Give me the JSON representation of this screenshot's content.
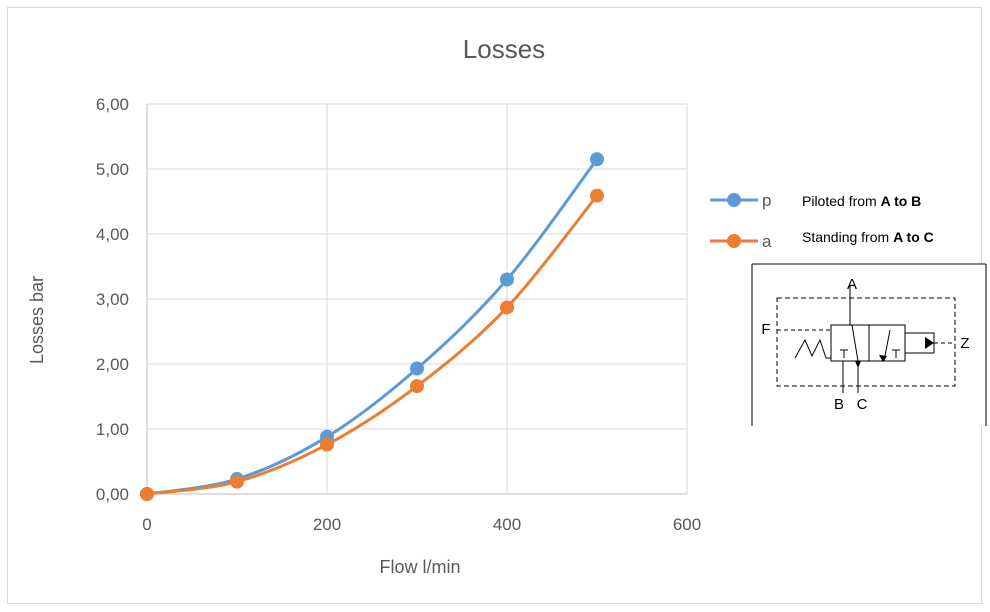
{
  "chart_data": {
    "type": "line",
    "title": "Losses",
    "xlabel": "Flow l/min",
    "ylabel": "Losses bar",
    "xlim": [
      0,
      600
    ],
    "ylim": [
      0,
      6
    ],
    "x_ticks": [
      "0",
      "200",
      "400",
      "600"
    ],
    "y_ticks": [
      "0,00",
      "1,00",
      "2,00",
      "3,00",
      "4,00",
      "5,00",
      "6,00"
    ],
    "grid": true,
    "smooth": true,
    "legend_position": "right",
    "x": [
      0,
      100,
      200,
      300,
      400,
      500
    ],
    "series": [
      {
        "name": "p",
        "color": "#5b9bd5",
        "values": [
          0.0,
          0.23,
          0.88,
          1.93,
          3.3,
          5.15
        ]
      },
      {
        "name": "a",
        "color": "#ed7d31",
        "values": [
          0.0,
          0.19,
          0.76,
          1.66,
          2.87,
          4.59
        ]
      }
    ]
  },
  "notes": {
    "piloted": {
      "prefix": "Piloted from ",
      "bold": "A to B"
    },
    "standing": {
      "prefix": "Standing from ",
      "bold": "A to C"
    }
  },
  "valve_diagram": {
    "port_a": "A",
    "port_b": "B",
    "port_c": "C",
    "port_f": "F",
    "port_z": "Z"
  }
}
